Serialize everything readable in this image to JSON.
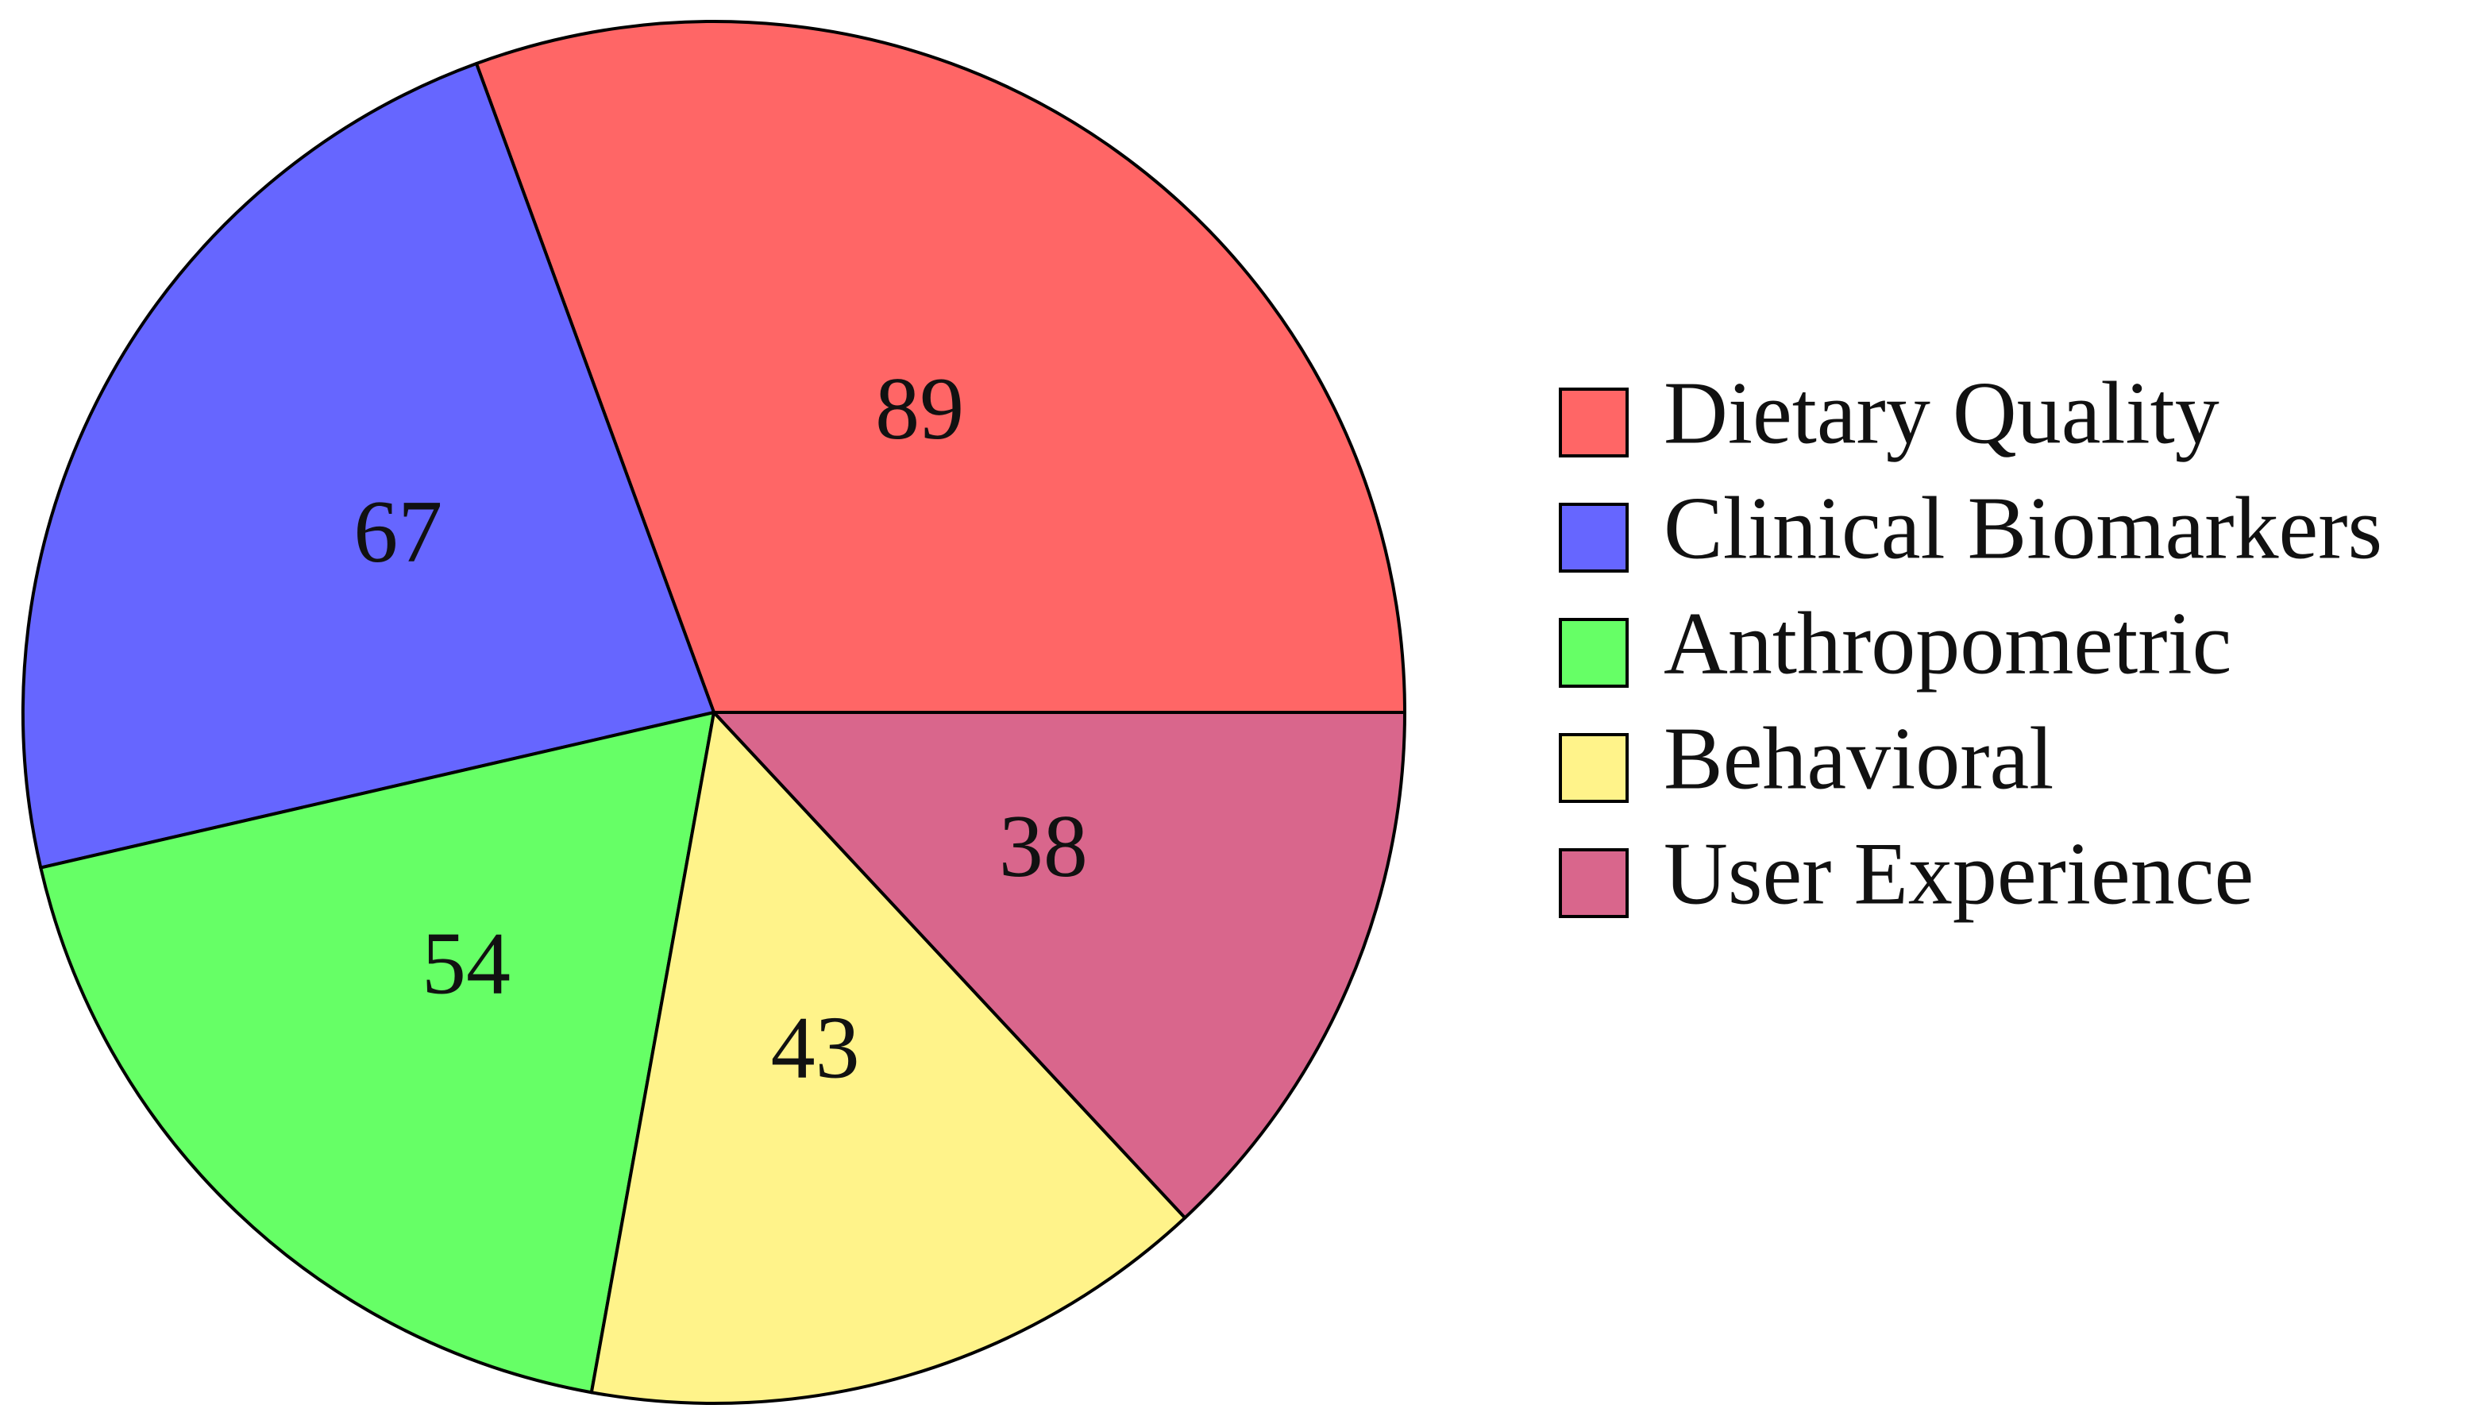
{
  "chart_data": {
    "type": "pie",
    "categories": [
      "Dietary Quality",
      "Clinical Biomarkers",
      "Anthropometric",
      "Behavioral",
      "User Experience"
    ],
    "values": [
      89,
      67,
      54,
      43,
      38
    ],
    "colors": [
      "#ff6666",
      "#6666ff",
      "#66ff66",
      "#fff38a",
      "#d9668c"
    ],
    "legend": "right"
  }
}
